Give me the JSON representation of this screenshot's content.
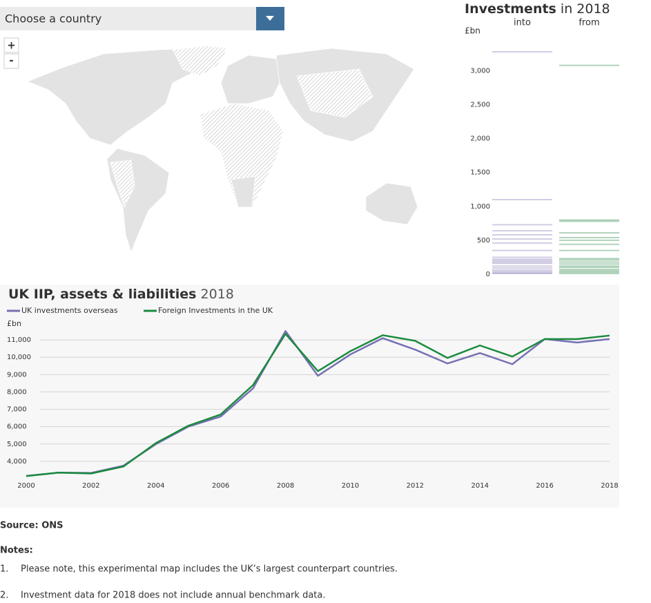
{
  "dropdown": {
    "placeholder": "Choose a country"
  },
  "zoom": {
    "in": "+",
    "out": "-"
  },
  "chart_data": [
    {
      "type": "strip",
      "title": "Investments",
      "subtitle": "in 2018",
      "ylabel": "£bn",
      "categories": [
        "into",
        "from"
      ],
      "ylim": [
        0,
        3300
      ],
      "yticks": [
        0,
        500,
        {
          "value": 1000,
          "label": "1,000"
        },
        {
          "value": 1500,
          "label": "1,500"
        },
        {
          "value": 2000,
          "label": "2,000"
        },
        {
          "value": 2500,
          "label": "2,500"
        },
        {
          "value": 3000,
          "label": "3,000"
        }
      ],
      "series": [
        {
          "name": "into",
          "color": "#7b6fb0",
          "values": [
            3280,
            1100,
            730,
            640,
            580,
            520,
            460,
            350,
            250,
            220,
            200,
            180,
            160,
            120,
            90,
            60,
            40,
            20,
            10
          ]
        },
        {
          "name": "from",
          "color": "#208040",
          "values": [
            3080,
            800,
            780,
            610,
            540,
            500,
            440,
            350,
            230,
            210,
            180,
            150,
            120,
            100,
            70,
            50,
            30,
            10
          ]
        }
      ]
    },
    {
      "type": "line",
      "title": "UK IIP, assets & liabilities",
      "subtitle": "2018",
      "ylabel": "£bn",
      "x": [
        2000,
        2001,
        2002,
        2003,
        2004,
        2005,
        2006,
        2007,
        2008,
        2009,
        2010,
        2011,
        2012,
        2013,
        2014,
        2015,
        2016,
        2017,
        2018
      ],
      "xlim": [
        2000,
        2018
      ],
      "xticks": [
        2000,
        2002,
        2004,
        2006,
        2008,
        2010,
        2012,
        2014,
        2016,
        2018
      ],
      "ylim": [
        3000,
        11800
      ],
      "yticks": [
        {
          "value": 4000,
          "label": "4,000"
        },
        {
          "value": 5000,
          "label": "5,000"
        },
        {
          "value": 6000,
          "label": "6,000"
        },
        {
          "value": 7000,
          "label": "7,000"
        },
        {
          "value": 8000,
          "label": "8,000"
        },
        {
          "value": 9000,
          "label": "9,000"
        },
        {
          "value": 10000,
          "label": "10,000"
        },
        {
          "value": 11000,
          "label": "11,000"
        }
      ],
      "grid": true,
      "series": [
        {
          "name": "UK investments overseas",
          "color": "#7570b3",
          "values": [
            3160,
            3350,
            3330,
            3750,
            4990,
            6000,
            6580,
            8210,
            11510,
            8930,
            10160,
            11100,
            10440,
            9640,
            10240,
            9600,
            11050,
            10850,
            11050
          ]
        },
        {
          "name": "Foreign Investments in the UK",
          "color": "#1b8a3e",
          "values": [
            3150,
            3350,
            3300,
            3700,
            5050,
            6050,
            6700,
            8400,
            11350,
            9200,
            10350,
            11270,
            10950,
            9960,
            10680,
            10040,
            11050,
            11050,
            11250
          ]
        }
      ]
    }
  ],
  "source": "Source: ONS",
  "notes": {
    "title": "Notes:",
    "items": [
      {
        "number": "1.",
        "text": "Please note, this experimental map includes the UK’s largest counterpart countries."
      },
      {
        "number": "2.",
        "text": "Investment data for 2018 does not include annual benchmark data."
      }
    ]
  }
}
